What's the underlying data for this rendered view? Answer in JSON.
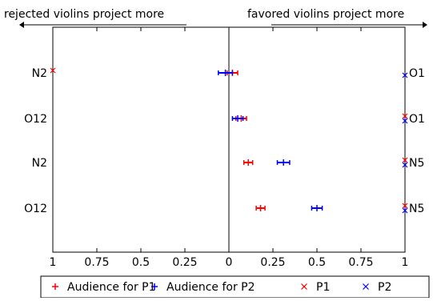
{
  "chart_data": {
    "type": "scatter",
    "x_axis": {
      "range": [
        -1,
        1
      ],
      "ticks": [
        -1,
        -0.75,
        -0.5,
        -0.25,
        0,
        0.25,
        0.5,
        0.75,
        1
      ],
      "tick_labels": [
        "1",
        "0.75",
        "0.5",
        "0.25",
        "0",
        "0.25",
        "0.5",
        "0.75",
        "1"
      ]
    },
    "annotations": {
      "left": "rejected violins project more",
      "right": "favored violins project more"
    },
    "rows": [
      {
        "left_label": "N2",
        "right_label": "O1"
      },
      {
        "left_label": "O12",
        "right_label": "O1"
      },
      {
        "left_label": "N2",
        "right_label": "N5"
      },
      {
        "left_label": "O12",
        "right_label": "N5"
      }
    ],
    "series": [
      {
        "name": "Audience for P1",
        "marker": "+",
        "color": "#ff0000",
        "error_bars": true,
        "points": [
          {
            "row": 0,
            "x": 0.02,
            "err": 0.03
          },
          {
            "row": 1,
            "x": 0.07,
            "err": 0.03
          },
          {
            "row": 2,
            "x": 0.11,
            "err": 0.025
          },
          {
            "row": 3,
            "x": 0.18,
            "err": 0.025
          }
        ]
      },
      {
        "name": "Audience for P2",
        "marker": "+",
        "color": "#0000ff",
        "error_bars": true,
        "points": [
          {
            "row": 0,
            "x": -0.02,
            "err": 0.04
          },
          {
            "row": 1,
            "x": 0.05,
            "err": 0.03
          },
          {
            "row": 2,
            "x": 0.31,
            "err": 0.035
          },
          {
            "row": 3,
            "x": 0.5,
            "err": 0.03
          }
        ]
      },
      {
        "name": "P1",
        "marker": "x",
        "color": "#ff0000",
        "points": [
          {
            "row": 0,
            "x": -1.0
          },
          {
            "row": 1,
            "x": 1.0
          },
          {
            "row": 2,
            "x": 1.0
          },
          {
            "row": 3,
            "x": 1.0
          }
        ]
      },
      {
        "name": "P2",
        "marker": "x",
        "color": "#0000ff",
        "points": [
          {
            "row": 0,
            "x": 1.0
          },
          {
            "row": 1,
            "x": 1.0
          },
          {
            "row": 2,
            "x": 1.0
          },
          {
            "row": 3,
            "x": 1.0
          }
        ]
      }
    ],
    "legend": {
      "placement": "bottom",
      "entries": [
        {
          "label": "Audience for P1",
          "marker": "+",
          "color": "#ff0000"
        },
        {
          "label": "Audience for P2",
          "marker": "+",
          "color": "#0000ff"
        },
        {
          "label": "P1",
          "marker": "x",
          "color": "#ff0000"
        },
        {
          "label": "P2",
          "marker": "x",
          "color": "#0000ff"
        }
      ]
    }
  }
}
